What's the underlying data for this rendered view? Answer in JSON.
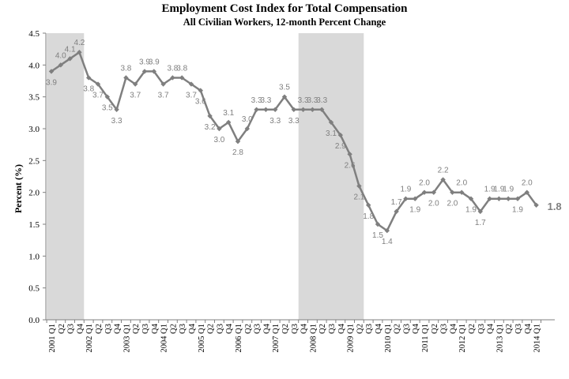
{
  "chart_data": {
    "type": "line",
    "title": "Employment Cost Index for Total Compensation",
    "subtitle": "All Civilian Workers, 12-month Percent Change",
    "xlabel": "",
    "ylabel": "Percent (%)",
    "ylim": [
      0,
      4.5
    ],
    "yticks": [
      "0.0",
      "0.5",
      "1.0",
      "1.5",
      "2.0",
      "2.5",
      "3.0",
      "3.5",
      "4.0",
      "4.5"
    ],
    "grid": false,
    "legend": "none",
    "line_color": "#7f7f7f",
    "shade_color": "#d9d9d9",
    "recession_shading": [
      {
        "from": "2001 Q1",
        "to": "2001 Q4"
      },
      {
        "from": "2007 Q4",
        "to": "2009 Q2"
      }
    ],
    "x": [
      "2001 Q1",
      "Q2",
      "Q3",
      "Q4",
      "2002 Q1",
      "Q2",
      "Q3",
      "Q4",
      "2003 Q1",
      "Q2",
      "Q3",
      "Q4",
      "2004 Q1",
      "Q2",
      "Q3",
      "Q4",
      "2005 Q1",
      "Q2",
      "Q3",
      "Q4",
      "2006 Q1",
      "Q2",
      "Q3",
      "Q4",
      "2007 Q1",
      "Q2",
      "Q3",
      "Q4",
      "2008 Q1",
      "Q2",
      "Q3",
      "Q4",
      "2009 Q1",
      "Q2",
      "Q3",
      "Q4",
      "2010 Q1",
      "Q2",
      "Q3",
      "Q4",
      "2011 Q1",
      "Q2",
      "Q3",
      "Q4",
      "2012 Q1",
      "Q2",
      "Q3",
      "Q4",
      "2013 Q1",
      "Q2",
      "Q3",
      "Q4",
      "2014 Q1"
    ],
    "series": [
      {
        "values": [
          3.9,
          4.0,
          4.1,
          4.2,
          3.8,
          3.7,
          3.5,
          3.3,
          3.8,
          3.7,
          3.9,
          3.9,
          3.7,
          3.8,
          3.8,
          3.7,
          3.6,
          3.2,
          3.0,
          3.1,
          2.8,
          3.0,
          3.3,
          3.3,
          3.3,
          3.5,
          3.3,
          3.3,
          3.3,
          3.3,
          3.1,
          2.9,
          2.6,
          2.1,
          1.8,
          1.5,
          1.4,
          1.7,
          1.9,
          1.9,
          2.0,
          2.0,
          2.2,
          2.0,
          2.0,
          1.9,
          1.7,
          1.9,
          1.9,
          1.9,
          1.9,
          2.0,
          1.8
        ],
        "data_labels": [
          "3.9",
          "4.0",
          "4.1",
          "4.2",
          "3.8",
          "3.7",
          "3.5",
          "3.3",
          "3.8",
          "3.7",
          "3.9",
          "3.9",
          "3.7",
          "3.8",
          "3.8",
          "3.7",
          "3.6",
          "3.2",
          "3.0",
          "3.1",
          "2.8",
          "3.0",
          "3.3",
          "3.3",
          "3.3",
          "3.5",
          "3.3",
          "3.3",
          "3.3",
          "3.3",
          "3.1",
          "2.9",
          "2.6",
          "2.1",
          "1.8",
          "1.5",
          "1.4",
          "1.7",
          "1.9",
          "1.9",
          "2.0",
          "2.0",
          "2.2",
          "2.0",
          "2.0",
          "1.9",
          "1.7",
          "1.9",
          "1.9",
          "1.9",
          "1.9",
          "2.0",
          "1.8"
        ]
      }
    ]
  }
}
